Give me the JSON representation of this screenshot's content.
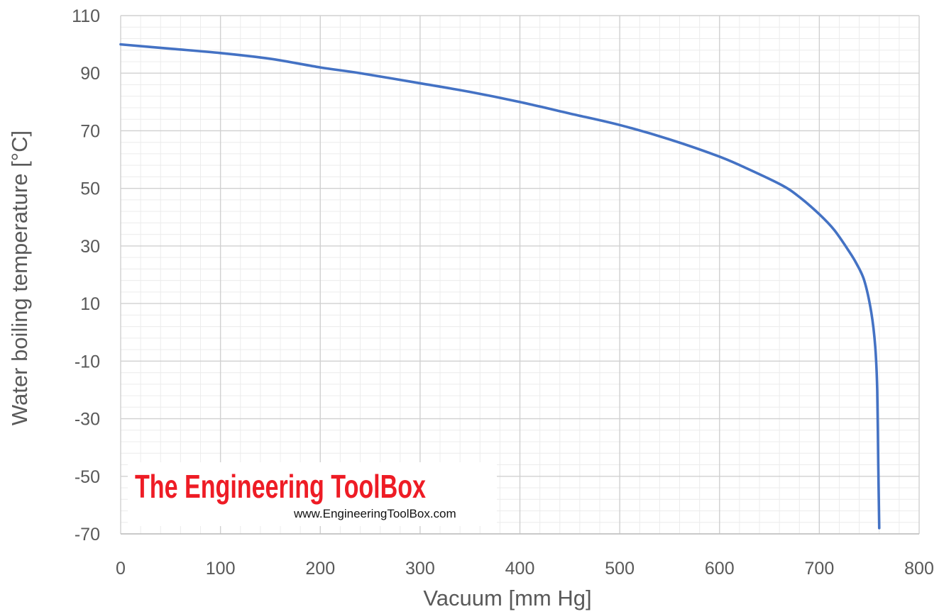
{
  "chart_data": {
    "type": "line",
    "title": "",
    "xlabel": "Vacuum [mm Hg]",
    "ylabel": "Water boiling temperature [°C]",
    "xlim": [
      0,
      800
    ],
    "ylim": [
      -70,
      110
    ],
    "xticks": [
      0,
      100,
      200,
      300,
      400,
      500,
      600,
      700,
      800
    ],
    "yticks": [
      -70,
      -50,
      -30,
      -10,
      10,
      30,
      50,
      70,
      90,
      110
    ],
    "xtick_labels": [
      "0",
      "100",
      "200",
      "300",
      "400",
      "500",
      "600",
      "700",
      "800"
    ],
    "ytick_labels": [
      "-70",
      "-50",
      "-30",
      "-10",
      "10",
      "30",
      "50",
      "70",
      "90",
      "110"
    ],
    "grid": true,
    "minor_grid": true,
    "legend": "none",
    "series": [
      {
        "color": "#4472c4",
        "x": [
          0,
          50,
          100,
          150,
          200,
          240,
          300,
          350,
          400,
          450,
          500,
          550,
          600,
          630,
          663,
          680,
          700,
          715,
          730,
          737,
          745,
          752,
          756,
          758,
          759,
          760
        ],
        "y": [
          100,
          98.5,
          97,
          95,
          92,
          90,
          86.5,
          83.5,
          80,
          76,
          72,
          67,
          61,
          56.5,
          51,
          47,
          41,
          35.5,
          28,
          24,
          18,
          7,
          -5,
          -20,
          -45,
          -68
        ]
      }
    ]
  },
  "watermark": {
    "brand": "The Engineering ToolBox",
    "url": "www.EngineeringToolBox.com",
    "brand_color": "#ee1c25"
  }
}
